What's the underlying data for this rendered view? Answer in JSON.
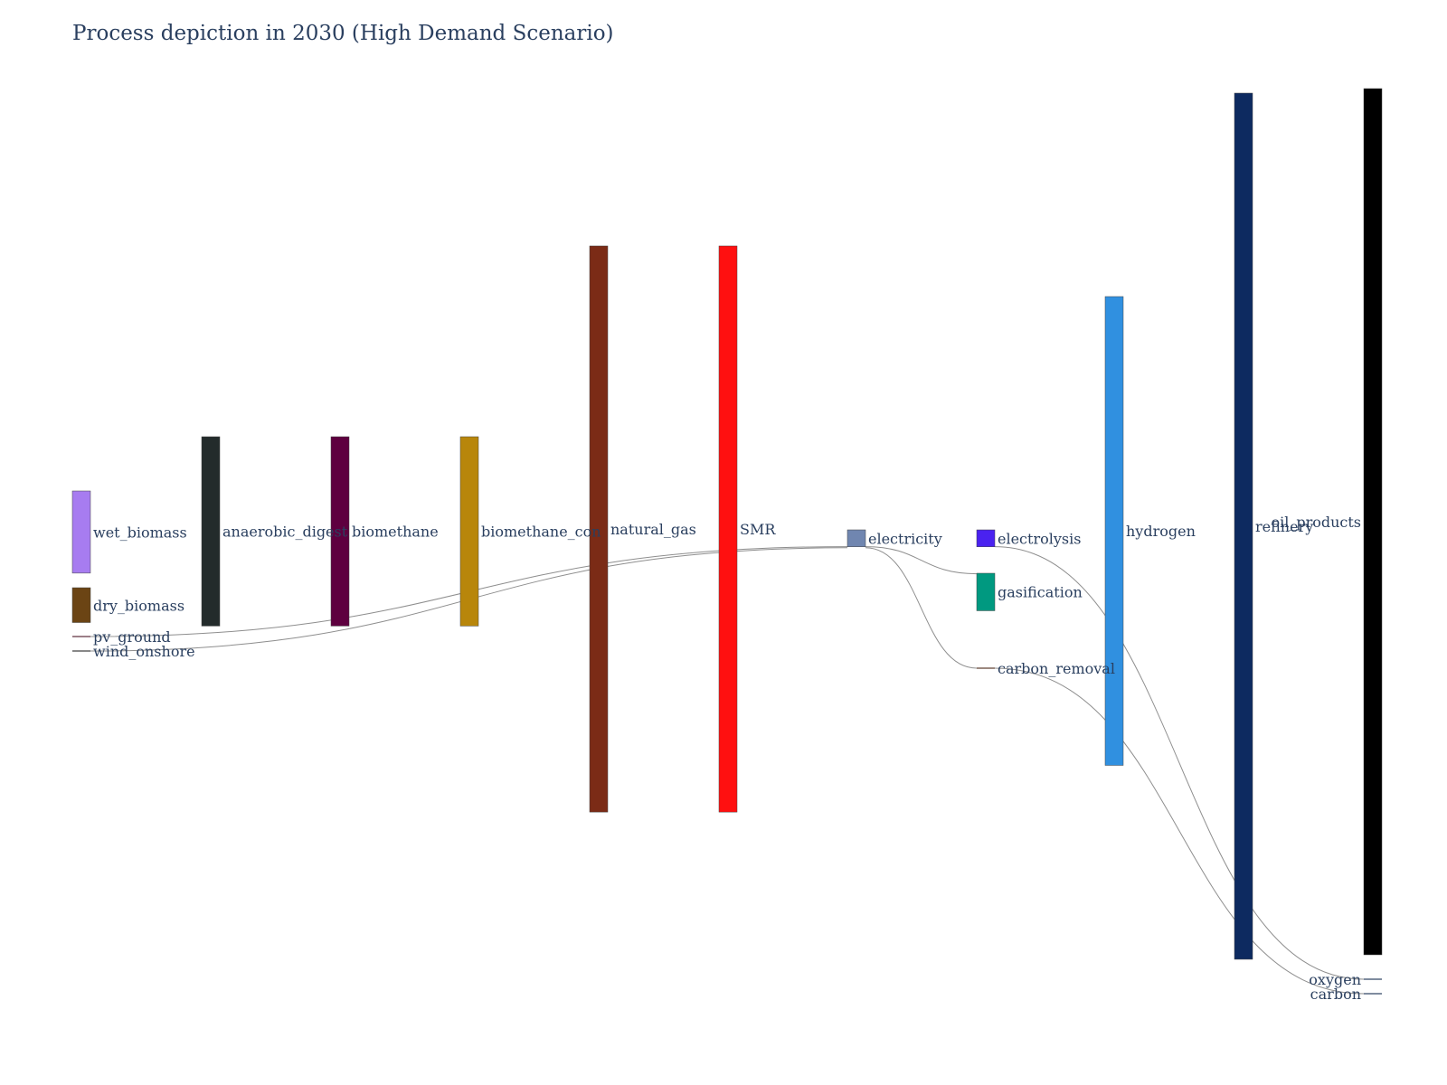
{
  "chart_data": {
    "type": "sankey",
    "title": "Process depiction in 2030 (High Demand Scenario)",
    "colors": {
      "link_main": "#c9c9c9",
      "link_dark": "#9c9c9c",
      "link_thin": "#7a7a7a"
    },
    "nodes": [
      {
        "id": "wet_biomass",
        "label": "wet_biomass",
        "color": "#a77cf0"
      },
      {
        "id": "dry_biomass",
        "label": "dry_biomass",
        "color": "#6b4414"
      },
      {
        "id": "pv_ground",
        "label": "pv_ground",
        "color": "#5a2a3a"
      },
      {
        "id": "wind_onshore",
        "label": "wind_onshore",
        "color": "#3a3a3a"
      },
      {
        "id": "anaerobic_digestion",
        "label": "anaerobic_digest",
        "color": "#232b2b"
      },
      {
        "id": "biomethane",
        "label": "biomethane",
        "color": "#5e003f"
      },
      {
        "id": "biomethane_conversion",
        "label": "biomethane_con",
        "color": "#b8860b"
      },
      {
        "id": "natural_gas",
        "label": "natural_gas",
        "color": "#7b2b16"
      },
      {
        "id": "SMR",
        "label": "SMR",
        "color": "#ff1010"
      },
      {
        "id": "electricity",
        "label": "electricity",
        "color": "#7086b0"
      },
      {
        "id": "electrolysis",
        "label": "electrolysis",
        "color": "#4a22f0"
      },
      {
        "id": "gasification",
        "label": "gasification",
        "color": "#009980"
      },
      {
        "id": "carbon_removal",
        "label": "carbon_removal",
        "color": "#5a3a2a"
      },
      {
        "id": "hydrogen",
        "label": "hydrogen",
        "color": "#3090e0"
      },
      {
        "id": "refinery",
        "label": "refinery",
        "color": "#0d2a60"
      },
      {
        "id": "oil_products",
        "label": "oil_products",
        "color": "#000000"
      },
      {
        "id": "oxygen",
        "label": "oxygen",
        "color": "#2a3f5f"
      },
      {
        "id": "carbon",
        "label": "carbon",
        "color": "#2a3f5f"
      }
    ],
    "links": [
      {
        "source": "wet_biomass",
        "target": "anaerobic_digestion",
        "value": 92,
        "style": "main"
      },
      {
        "source": "anaerobic_digestion",
        "target": "biomethane",
        "value": 212,
        "style": "main"
      },
      {
        "source": "biomethane",
        "target": "biomethane_conversion",
        "value": 212,
        "style": "main"
      },
      {
        "source": "biomethane_conversion",
        "target": "natural_gas",
        "value": 212,
        "style": "main"
      },
      {
        "source": "dry_biomass",
        "target": "gasification",
        "value": 39,
        "style": "dark"
      },
      {
        "source": "pv_ground",
        "target": "electricity",
        "value": 1.2,
        "style": "thin"
      },
      {
        "source": "wind_onshore",
        "target": "electricity",
        "value": 1.2,
        "style": "thin"
      },
      {
        "source": "natural_gas",
        "target": "SMR",
        "value": 634,
        "style": "main"
      },
      {
        "source": "SMR",
        "target": "hydrogen",
        "value": 488,
        "style": "main"
      },
      {
        "source": "SMR",
        "target": "electricity",
        "value": 19,
        "style": "dark"
      },
      {
        "source": "electricity",
        "target": "electrolysis",
        "value": 19,
        "style": "dark"
      },
      {
        "source": "electricity",
        "target": "gasification",
        "value": 1.2,
        "style": "thin"
      },
      {
        "source": "electricity",
        "target": "carbon_removal",
        "value": 1.2,
        "style": "thin"
      },
      {
        "source": "electrolysis",
        "target": "hydrogen",
        "value": 18,
        "style": "dark"
      },
      {
        "source": "electrolysis",
        "target": "oxygen",
        "value": 1.2,
        "style": "thin"
      },
      {
        "source": "gasification",
        "target": "hydrogen",
        "value": 38,
        "style": "dark"
      },
      {
        "source": "carbon_removal",
        "target": "carbon",
        "value": 1.2,
        "style": "thin"
      },
      {
        "source": "hydrogen",
        "target": "refinery",
        "value": 523,
        "style": "main"
      },
      {
        "source": "refinery",
        "target": "oil_products",
        "value": 969,
        "style": "main"
      }
    ]
  }
}
